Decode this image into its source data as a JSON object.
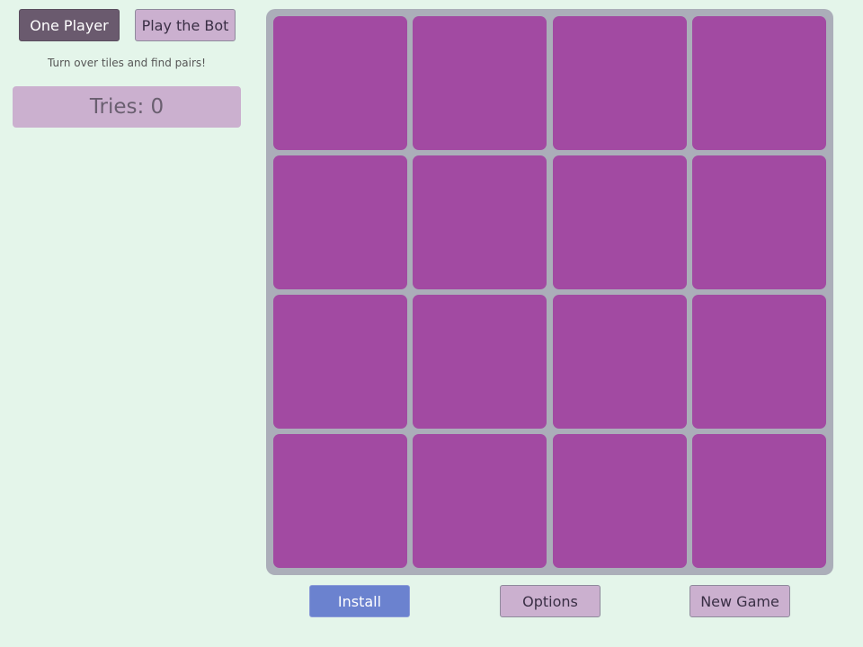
{
  "mode_buttons": {
    "one_player": "One Player",
    "play_bot": "Play the Bot"
  },
  "hint": "Turn over tiles and find pairs!",
  "tries": "Tries: 0",
  "board": {
    "rows": 4,
    "cols": 4,
    "tile_color": "#a24aa2",
    "state": "all face down"
  },
  "footer": {
    "install": "Install",
    "options": "Options",
    "new_game": "New Game"
  },
  "colors": {
    "background": "#e4f5ea",
    "board": "#abaeb9",
    "button": "#cbb0cf",
    "active_button": "#6a5a6e",
    "install": "#6b82cf"
  }
}
